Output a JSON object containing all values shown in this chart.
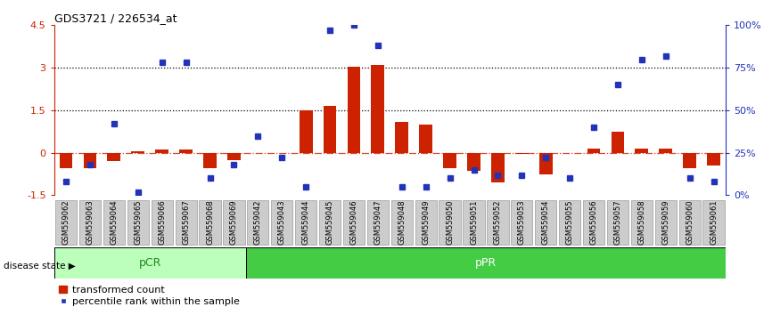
{
  "title": "GDS3721 / 226534_at",
  "samples": [
    "GSM559062",
    "GSM559063",
    "GSM559064",
    "GSM559065",
    "GSM559066",
    "GSM559067",
    "GSM559068",
    "GSM559069",
    "GSM559042",
    "GSM559043",
    "GSM559044",
    "GSM559045",
    "GSM559046",
    "GSM559047",
    "GSM559048",
    "GSM559049",
    "GSM559050",
    "GSM559051",
    "GSM559052",
    "GSM559053",
    "GSM559054",
    "GSM559055",
    "GSM559056",
    "GSM559057",
    "GSM559058",
    "GSM559059",
    "GSM559060",
    "GSM559061"
  ],
  "transformed_count": [
    -0.55,
    -0.55,
    -0.3,
    0.05,
    0.12,
    0.12,
    -0.55,
    -0.25,
    0.0,
    0.0,
    1.5,
    1.65,
    3.05,
    3.1,
    1.1,
    1.0,
    -0.55,
    -0.65,
    -1.05,
    -0.05,
    -0.75,
    0.0,
    0.15,
    0.75,
    0.15,
    0.15,
    -0.55,
    -0.45
  ],
  "percentile_rank": [
    8,
    18,
    42,
    2,
    78,
    78,
    10,
    18,
    35,
    22,
    5,
    97,
    100,
    88,
    5,
    5,
    10,
    15,
    12,
    12,
    22,
    10,
    40,
    65,
    80,
    82,
    10,
    8
  ],
  "pCR_count": 8,
  "pPR_count": 20,
  "ylim_left": [
    -1.5,
    4.5
  ],
  "ylim_right": [
    0,
    100
  ],
  "yticks_left": [
    -1.5,
    0.0,
    1.5,
    3.0,
    4.5
  ],
  "yticks_right": [
    0,
    25,
    50,
    75,
    100
  ],
  "ytick_labels_left": [
    "-1.5",
    "0",
    "1.5",
    "3",
    "4.5"
  ],
  "ytick_labels_right": [
    "0%",
    "25%",
    "50%",
    "75%",
    "100%"
  ],
  "hlines": [
    1.5,
    3.0
  ],
  "bar_color": "#cc2200",
  "dot_color": "#2233bb",
  "pCR_facecolor": "#bbffbb",
  "pPR_facecolor": "#44cc44",
  "pCR_label": "pCR",
  "pPR_label": "pPR",
  "pCR_text_color": "#228822",
  "pPR_text_color": "#ffffff",
  "disease_state_label": "disease state",
  "legend_bar_label": "transformed count",
  "legend_dot_label": "percentile rank within the sample",
  "tick_bg_color": "#cccccc",
  "tick_edge_color": "#999999"
}
